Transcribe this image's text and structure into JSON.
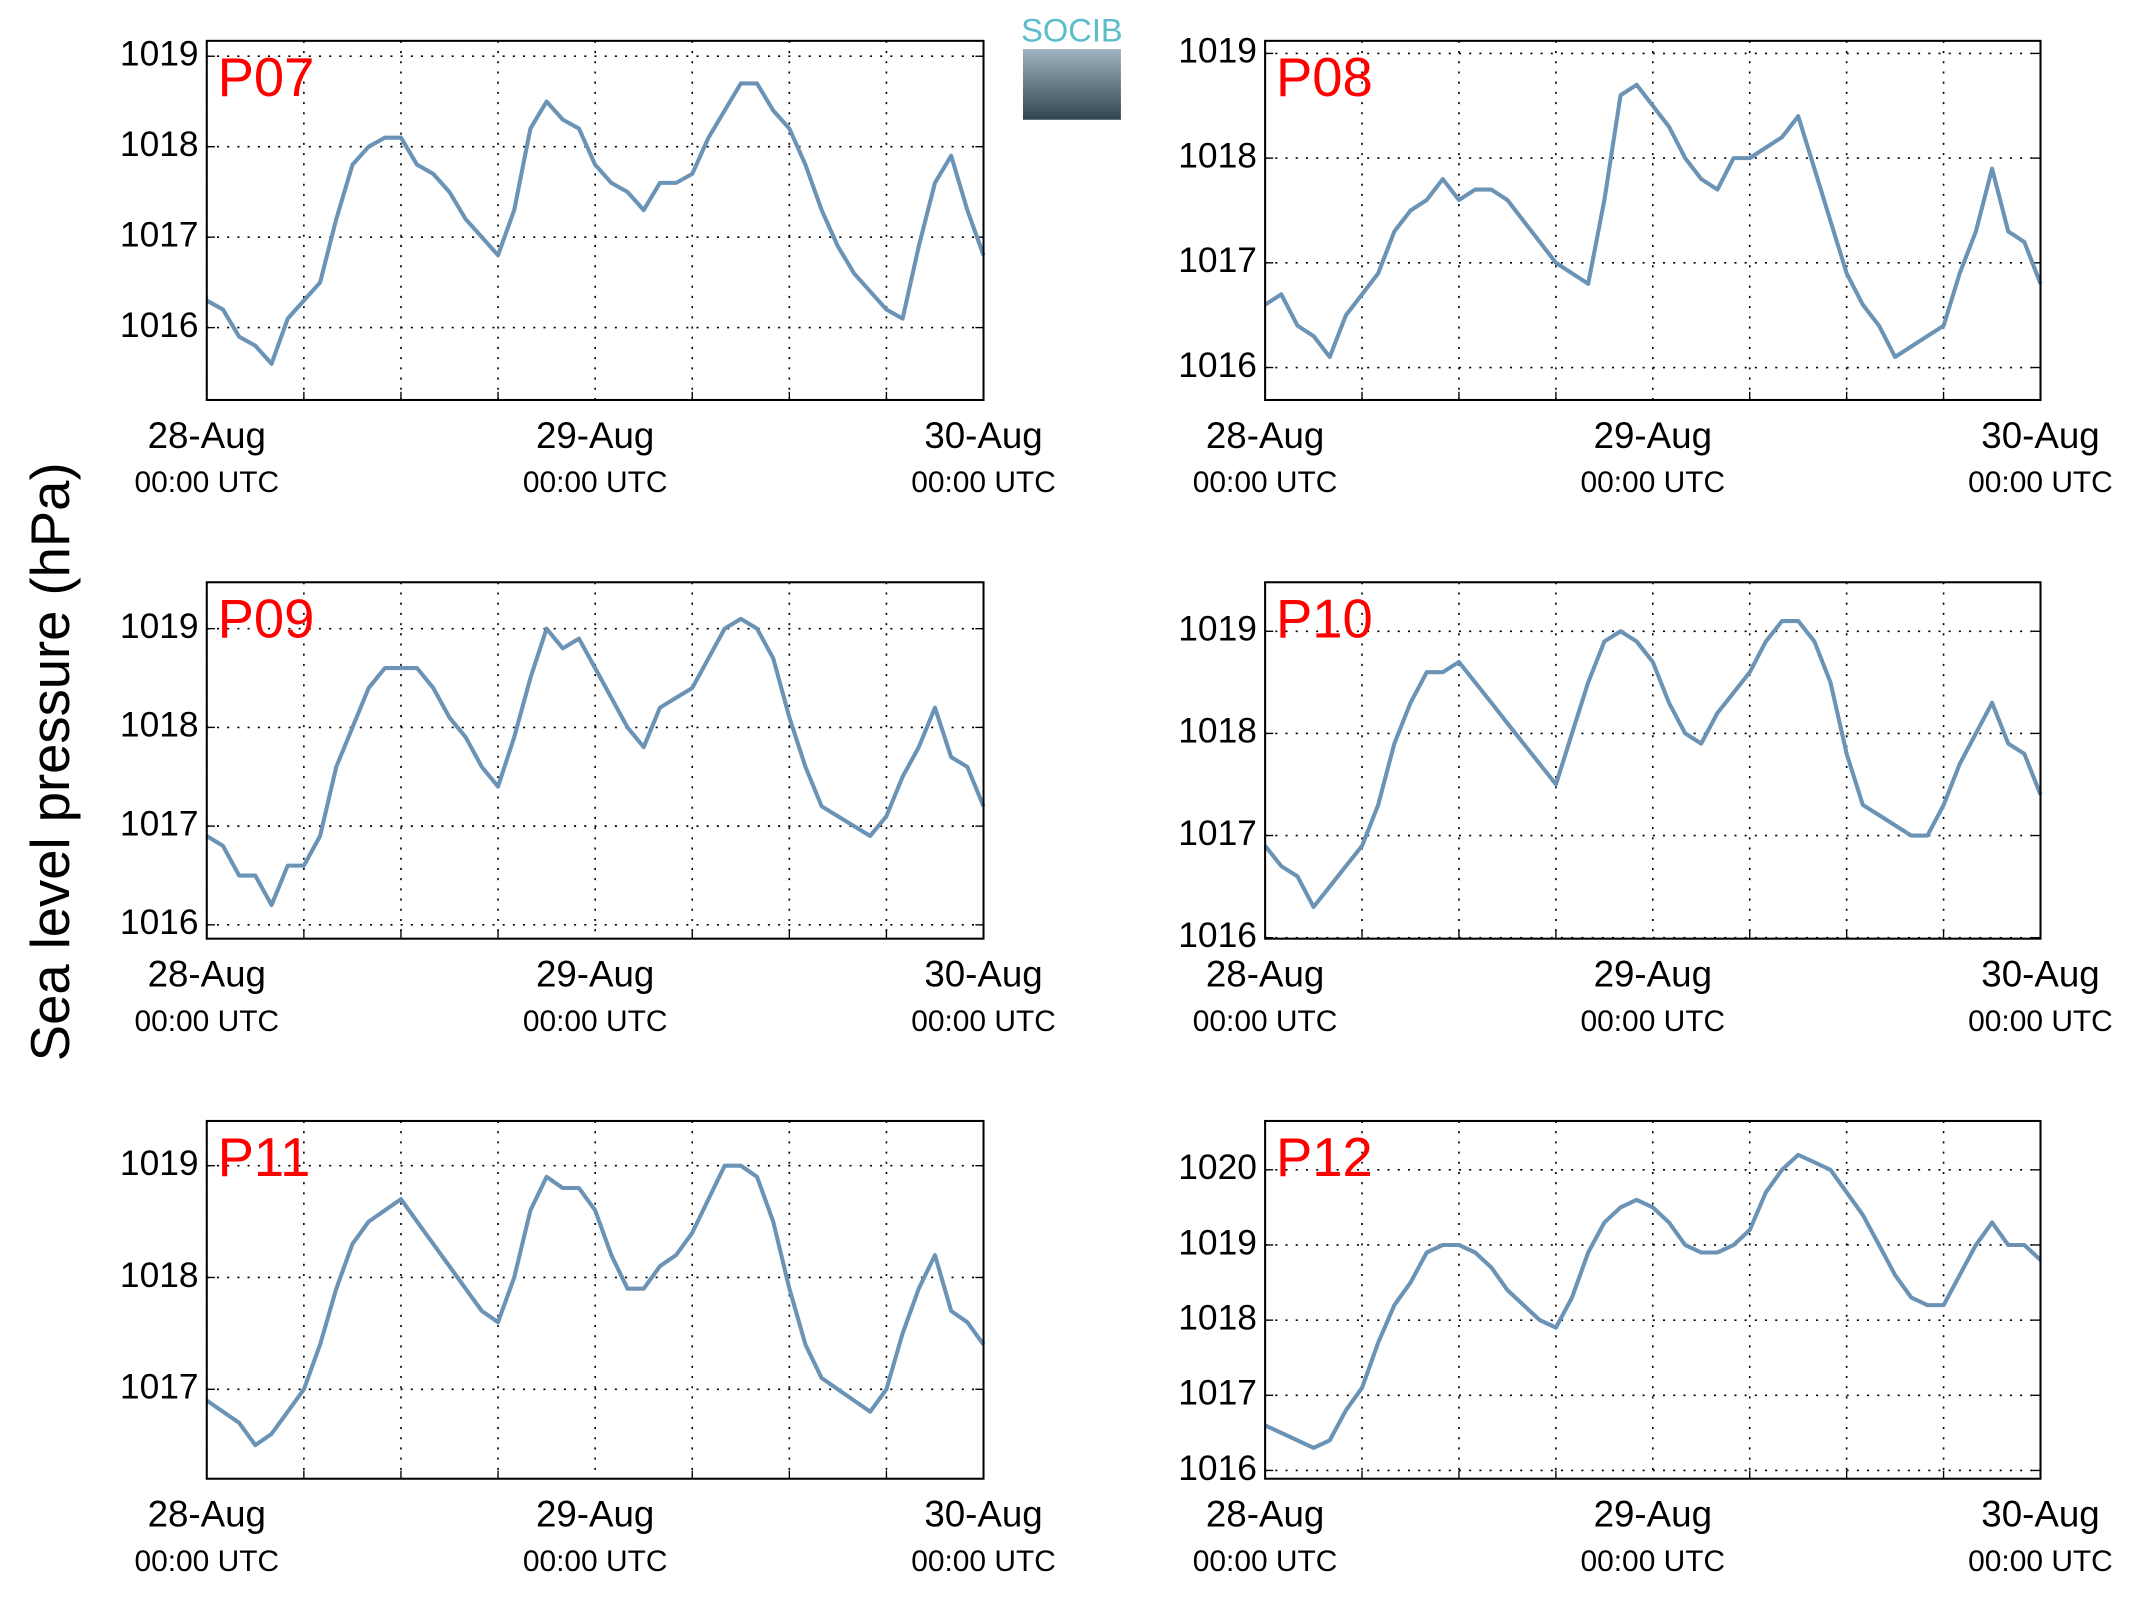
{
  "ylabel": "Sea level pressure (hPa)",
  "logo_text": "SOCIB",
  "chart_data": [
    {
      "type": "line",
      "title": "P07",
      "color": "#6a93b5",
      "grid": true,
      "x": [
        0,
        1,
        2,
        3,
        4,
        5,
        6,
        7,
        8,
        9,
        10,
        11,
        12,
        13,
        14,
        15,
        16,
        17,
        18,
        19,
        20,
        21,
        22,
        23,
        24,
        25,
        26,
        27,
        28,
        29,
        30,
        31,
        32,
        33,
        34,
        35,
        36,
        37,
        38,
        39,
        40,
        41,
        42,
        43,
        44,
        45,
        46,
        47,
        48
      ],
      "values": [
        1016.3,
        1016.2,
        1015.9,
        1015.8,
        1015.6,
        1016.1,
        1016.3,
        1016.5,
        1017.2,
        1017.8,
        1018.0,
        1018.1,
        1018.1,
        1017.8,
        1017.7,
        1017.5,
        1017.2,
        1017.0,
        1016.8,
        1017.3,
        1018.2,
        1018.5,
        1018.3,
        1018.2,
        1017.8,
        1017.6,
        1017.5,
        1017.3,
        1017.6,
        1017.6,
        1017.7,
        1018.1,
        1018.4,
        1018.7,
        1018.7,
        1018.4,
        1018.2,
        1017.8,
        1017.3,
        1016.9,
        1016.6,
        1016.4,
        1016.2,
        1016.1,
        1016.9,
        1017.6,
        1017.9,
        1017.3,
        1016.8
      ],
      "xlim": [
        0,
        48
      ],
      "xticks": [
        {
          "value": 0,
          "label": [
            "28-Aug",
            "00:00 UTC"
          ]
        },
        {
          "value": 24,
          "label": [
            "29-Aug",
            "00:00 UTC"
          ]
        },
        {
          "value": 48,
          "label": [
            "30-Aug",
            "00:00 UTC"
          ]
        }
      ],
      "xminorticks": [
        6,
        12,
        18,
        30,
        36,
        42
      ],
      "ylim": [
        1015.2,
        1019.17
      ],
      "yticks": [
        1016,
        1017,
        1018,
        1019
      ]
    },
    {
      "type": "line",
      "title": "P08",
      "color": "#6a93b5",
      "grid": true,
      "x": [
        0,
        1,
        2,
        3,
        4,
        5,
        6,
        7,
        8,
        9,
        10,
        11,
        12,
        13,
        14,
        15,
        16,
        17,
        18,
        19,
        20,
        21,
        22,
        23,
        24,
        25,
        26,
        27,
        28,
        29,
        30,
        31,
        32,
        33,
        34,
        35,
        36,
        37,
        38,
        39,
        40,
        41,
        42,
        43,
        44,
        45,
        46,
        47,
        48
      ],
      "values": [
        1016.6,
        1016.7,
        1016.4,
        1016.3,
        1016.1,
        1016.5,
        1016.7,
        1016.9,
        1017.3,
        1017.5,
        1017.6,
        1017.8,
        1017.6,
        1017.7,
        1017.7,
        1017.6,
        1017.4,
        1017.2,
        1017.0,
        1016.9,
        1016.8,
        1017.6,
        1018.6,
        1018.7,
        1018.5,
        1018.3,
        1018.0,
        1017.8,
        1017.7,
        1018.0,
        1018.0,
        1018.1,
        1018.2,
        1018.4,
        1017.9,
        1017.4,
        1016.9,
        1016.6,
        1016.4,
        1016.1,
        1016.2,
        1016.3,
        1016.4,
        1016.9,
        1017.3,
        1017.9,
        1017.3,
        1017.2,
        1016.8
      ],
      "xlim": [
        0,
        48
      ],
      "xticks": [
        {
          "value": 0,
          "label": [
            "28-Aug",
            "00:00 UTC"
          ]
        },
        {
          "value": 24,
          "label": [
            "29-Aug",
            "00:00 UTC"
          ]
        },
        {
          "value": 48,
          "label": [
            "30-Aug",
            "00:00 UTC"
          ]
        }
      ],
      "xminorticks": [
        6,
        12,
        18,
        30,
        36,
        42
      ],
      "ylim": [
        1015.69,
        1019.12
      ],
      "yticks": [
        1016,
        1017,
        1018,
        1019
      ]
    },
    {
      "type": "line",
      "title": "P09",
      "color": "#6a93b5",
      "grid": true,
      "x": [
        0,
        1,
        2,
        3,
        4,
        5,
        6,
        7,
        8,
        9,
        10,
        11,
        12,
        13,
        14,
        15,
        16,
        17,
        18,
        19,
        20,
        21,
        22,
        23,
        24,
        25,
        26,
        27,
        28,
        29,
        30,
        31,
        32,
        33,
        34,
        35,
        36,
        37,
        38,
        39,
        40,
        41,
        42,
        43,
        44,
        45,
        46,
        47,
        48
      ],
      "values": [
        1016.9,
        1016.8,
        1016.5,
        1016.5,
        1016.2,
        1016.6,
        1016.6,
        1016.9,
        1017.6,
        1018.0,
        1018.4,
        1018.6,
        1018.6,
        1018.6,
        1018.4,
        1018.1,
        1017.9,
        1017.6,
        1017.4,
        1017.9,
        1018.5,
        1019.0,
        1018.8,
        1018.9,
        1018.6,
        1018.3,
        1018.0,
        1017.8,
        1018.2,
        1018.3,
        1018.4,
        1018.7,
        1019.0,
        1019.1,
        1019.0,
        1018.7,
        1018.1,
        1017.6,
        1017.2,
        1017.1,
        1017.0,
        1016.9,
        1017.1,
        1017.5,
        1017.8,
        1018.2,
        1017.7,
        1017.6,
        1017.2
      ],
      "xlim": [
        0,
        48
      ],
      "xticks": [
        {
          "value": 0,
          "label": [
            "28-Aug",
            "00:00 UTC"
          ]
        },
        {
          "value": 24,
          "label": [
            "29-Aug",
            "00:00 UTC"
          ]
        },
        {
          "value": 48,
          "label": [
            "30-Aug",
            "00:00 UTC"
          ]
        }
      ],
      "xminorticks": [
        6,
        12,
        18,
        30,
        36,
        42
      ],
      "ylim": [
        1015.86,
        1019.47
      ],
      "yticks": [
        1016,
        1017,
        1018,
        1019
      ]
    },
    {
      "type": "line",
      "title": "P10",
      "color": "#6a93b5",
      "grid": true,
      "x": [
        0,
        1,
        2,
        3,
        4,
        5,
        6,
        7,
        8,
        9,
        10,
        11,
        12,
        13,
        14,
        15,
        16,
        17,
        18,
        19,
        20,
        21,
        22,
        23,
        24,
        25,
        26,
        27,
        28,
        29,
        30,
        31,
        32,
        33,
        34,
        35,
        36,
        37,
        38,
        39,
        40,
        41,
        42,
        43,
        44,
        45,
        46,
        47,
        48
      ],
      "values": [
        1016.9,
        1016.7,
        1016.6,
        1016.3,
        1016.5,
        1016.7,
        1016.9,
        1017.3,
        1017.9,
        1018.3,
        1018.6,
        1018.6,
        1018.7,
        1018.5,
        1018.3,
        1018.1,
        1017.9,
        1017.7,
        1017.5,
        1018.0,
        1018.5,
        1018.9,
        1019.0,
        1018.9,
        1018.7,
        1018.3,
        1018.0,
        1017.9,
        1018.2,
        1018.4,
        1018.6,
        1018.9,
        1019.1,
        1019.1,
        1018.9,
        1018.5,
        1017.8,
        1017.3,
        1017.2,
        1017.1,
        1017.0,
        1017.0,
        1017.3,
        1017.7,
        1018.0,
        1018.3,
        1017.9,
        1017.8,
        1017.4
      ],
      "xlim": [
        0,
        48
      ],
      "xticks": [
        {
          "value": 0,
          "label": [
            "28-Aug",
            "00:00 UTC"
          ]
        },
        {
          "value": 24,
          "label": [
            "29-Aug",
            "00:00 UTC"
          ]
        },
        {
          "value": 48,
          "label": [
            "30-Aug",
            "00:00 UTC"
          ]
        }
      ],
      "xminorticks": [
        6,
        12,
        18,
        30,
        36,
        42
      ],
      "ylim": [
        1015.99,
        1019.48
      ],
      "yticks": [
        1016,
        1017,
        1018,
        1019
      ]
    },
    {
      "type": "line",
      "title": "P11",
      "color": "#6a93b5",
      "grid": true,
      "x": [
        0,
        1,
        2,
        3,
        4,
        5,
        6,
        7,
        8,
        9,
        10,
        11,
        12,
        13,
        14,
        15,
        16,
        17,
        18,
        19,
        20,
        21,
        22,
        23,
        24,
        25,
        26,
        27,
        28,
        29,
        30,
        31,
        32,
        33,
        34,
        35,
        36,
        37,
        38,
        39,
        40,
        41,
        42,
        43,
        44,
        45,
        46,
        47,
        48
      ],
      "values": [
        1016.9,
        1016.8,
        1016.7,
        1016.5,
        1016.6,
        1016.8,
        1017.0,
        1017.4,
        1017.9,
        1018.3,
        1018.5,
        1018.6,
        1018.7,
        1018.5,
        1018.3,
        1018.1,
        1017.9,
        1017.7,
        1017.6,
        1018.0,
        1018.6,
        1018.9,
        1018.8,
        1018.8,
        1018.6,
        1018.2,
        1017.9,
        1017.9,
        1018.1,
        1018.2,
        1018.4,
        1018.7,
        1019.0,
        1019.0,
        1018.9,
        1018.5,
        1017.9,
        1017.4,
        1017.1,
        1017.0,
        1016.9,
        1016.8,
        1017.0,
        1017.5,
        1017.9,
        1018.2,
        1017.7,
        1017.6,
        1017.4
      ],
      "xlim": [
        0,
        48
      ],
      "xticks": [
        {
          "value": 0,
          "label": [
            "28-Aug",
            "00:00 UTC"
          ]
        },
        {
          "value": 24,
          "label": [
            "29-Aug",
            "00:00 UTC"
          ]
        },
        {
          "value": 48,
          "label": [
            "30-Aug",
            "00:00 UTC"
          ]
        }
      ],
      "xminorticks": [
        6,
        12,
        18,
        30,
        36,
        42
      ],
      "ylim": [
        1016.2,
        1019.4
      ],
      "yticks": [
        1017,
        1018,
        1019
      ]
    },
    {
      "type": "line",
      "title": "P12",
      "color": "#6a93b5",
      "grid": true,
      "x": [
        0,
        1,
        2,
        3,
        4,
        5,
        6,
        7,
        8,
        9,
        10,
        11,
        12,
        13,
        14,
        15,
        16,
        17,
        18,
        19,
        20,
        21,
        22,
        23,
        24,
        25,
        26,
        27,
        28,
        29,
        30,
        31,
        32,
        33,
        34,
        35,
        36,
        37,
        38,
        39,
        40,
        41,
        42,
        43,
        44,
        45,
        46,
        47,
        48
      ],
      "values": [
        1016.6,
        1016.5,
        1016.4,
        1016.3,
        1016.4,
        1016.8,
        1017.1,
        1017.7,
        1018.2,
        1018.5,
        1018.9,
        1019.0,
        1019.0,
        1018.9,
        1018.7,
        1018.4,
        1018.2,
        1018.0,
        1017.9,
        1018.3,
        1018.9,
        1019.3,
        1019.5,
        1019.6,
        1019.5,
        1019.3,
        1019.0,
        1018.9,
        1018.9,
        1019.0,
        1019.2,
        1019.7,
        1020.0,
        1020.2,
        1020.1,
        1020.0,
        1019.7,
        1019.4,
        1019.0,
        1018.6,
        1018.3,
        1018.2,
        1018.2,
        1018.6,
        1019.0,
        1019.3,
        1019.0,
        1019.0,
        1018.8
      ],
      "xlim": [
        0,
        48
      ],
      "xticks": [
        {
          "value": 0,
          "label": [
            "28-Aug",
            "00:00 UTC"
          ]
        },
        {
          "value": 24,
          "label": [
            "29-Aug",
            "00:00 UTC"
          ]
        },
        {
          "value": 48,
          "label": [
            "30-Aug",
            "00:00 UTC"
          ]
        }
      ],
      "xminorticks": [
        6,
        12,
        18,
        30,
        36,
        42
      ],
      "ylim": [
        1015.89,
        1020.65
      ],
      "yticks": [
        1016,
        1017,
        1018,
        1019,
        1020
      ]
    }
  ]
}
